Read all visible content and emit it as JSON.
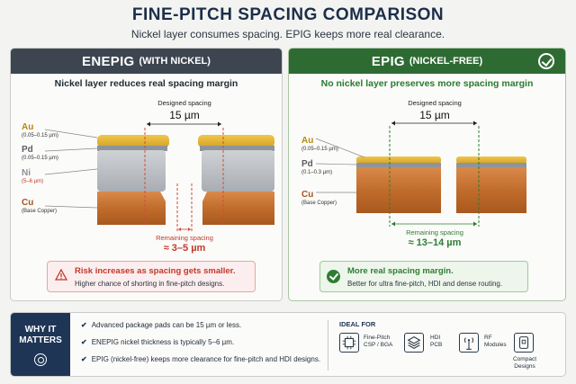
{
  "header": {
    "title": "FINE-PITCH SPACING COMPARISON",
    "subtitle": "Nickel layer consumes spacing. EPIG keeps more real clearance."
  },
  "enepig": {
    "name": "ENEPIG",
    "qualifier": "(WITH NICKEL)",
    "subtitle": "Nickel layer reduces real spacing margin",
    "designed_label": "Designed spacing",
    "designed_value": "15 µm",
    "layers": [
      {
        "name": "Au",
        "thickness": "(0.05–0.15 µm)",
        "color": "#e2b43a"
      },
      {
        "name": "Pd",
        "thickness": "(0.05–0.15 µm)",
        "color": "#8e949a"
      },
      {
        "name": "Ni",
        "thickness": "(5–6 µm)",
        "color": "#c0c3c6"
      },
      {
        "name": "Cu",
        "thickness": "(Base Copper)",
        "color": "#c97a3c"
      }
    ],
    "remaining_label": "Remaining spacing",
    "remaining_value": "≈ 3–5 µm",
    "callout_title": "Risk increases as spacing gets smaller.",
    "callout_text": "Higher chance of shorting in fine-pitch designs."
  },
  "epig": {
    "name": "EPIG",
    "qualifier": "(NICKEL-FREE)",
    "subtitle": "No nickel layer preserves more spacing margin",
    "designed_label": "Designed spacing",
    "designed_value": "15 µm",
    "layers": [
      {
        "name": "Au",
        "thickness": "(0.05–0.15 µm)",
        "color": "#e2b43a"
      },
      {
        "name": "Pd",
        "thickness": "(0.1–0.3 µm)",
        "color": "#8e949a"
      },
      {
        "name": "Cu",
        "thickness": "(Base Copper)",
        "color": "#c97a3c"
      }
    ],
    "remaining_label": "Remaining spacing",
    "remaining_value": "≈ 13–14 µm",
    "callout_title": "More real spacing margin.",
    "callout_text": "Better for ultra fine-pitch, HDI and dense routing."
  },
  "why": {
    "heading_line1": "WHY IT",
    "heading_line2": "MATTERS",
    "bullets": [
      "Advanced package pads can be 15 µm or less.",
      "ENEPIG nickel thickness is typically 5–6 µm.",
      "EPIG (nickel-free) keeps more clearance for fine-pitch and HDI designs."
    ]
  },
  "ideal": {
    "heading": "IDEAL FOR",
    "items": [
      {
        "line1": "Fine-Pitch",
        "line2": "CSP / BGA",
        "icon": "chip-icon"
      },
      {
        "line1": "HDI",
        "line2": "PCB",
        "icon": "layers-icon"
      },
      {
        "line1": "RF",
        "line2": "Modules",
        "icon": "antenna-icon"
      },
      {
        "line1": "Compact",
        "line2": "Designs",
        "icon": "device-icon"
      }
    ]
  },
  "colors": {
    "enepig_header": "#3d4650",
    "epig_header": "#2e6b33",
    "warning": "#c0392b",
    "success": "#2e7d32",
    "navy": "#1e3556"
  }
}
